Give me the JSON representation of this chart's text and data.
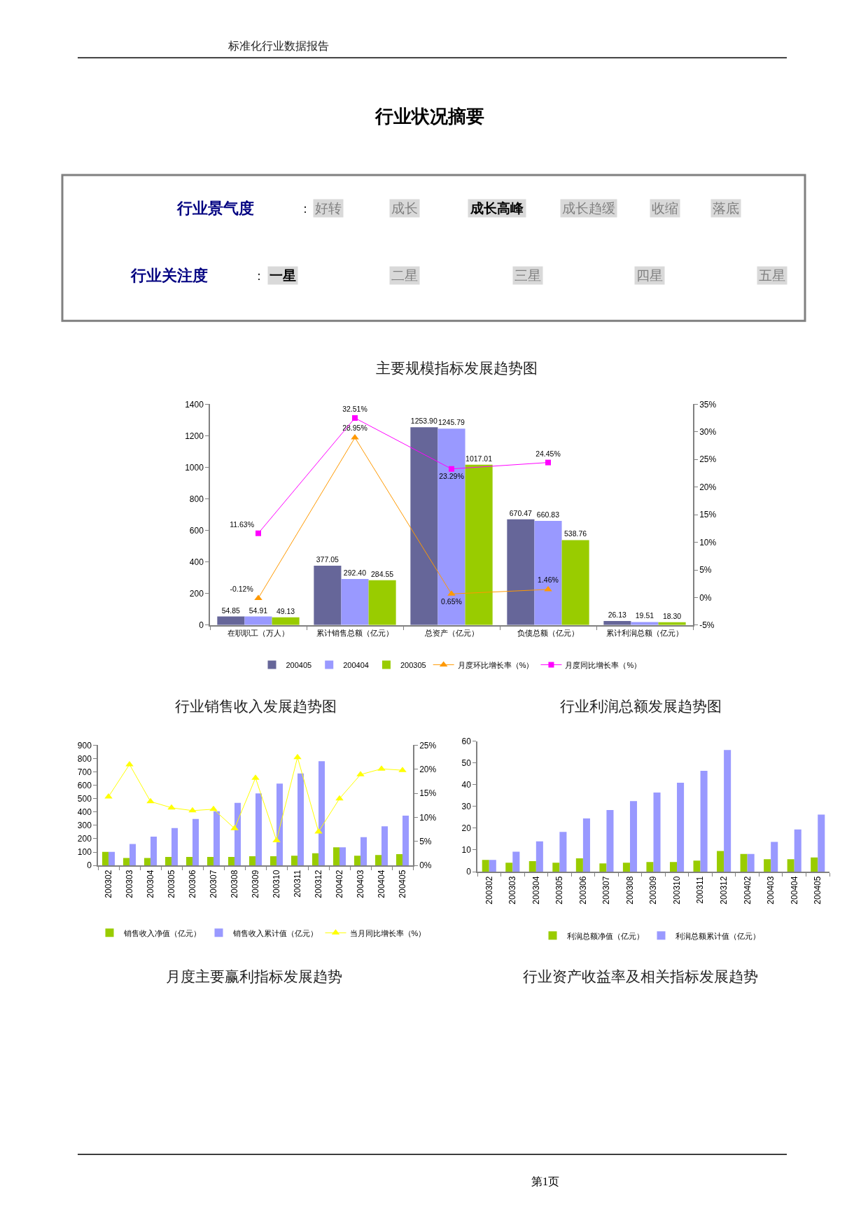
{
  "chart_data": [
    {
      "type": "other",
      "title": "行业状况摘要",
      "annotations": [
        "标准化行业数据报告",
        "行业景气度",
        "：",
        "好转",
        "成长",
        "成长高峰",
        "成长趋缓",
        "收缩",
        "落底",
        "行业关注度",
        "：",
        "一星",
        "二星",
        "三星",
        "四星",
        "五星"
      ]
    },
    {
      "type": "bar",
      "title": "主要规模指标发展趋势图",
      "categories": [
        "在职职工（万人）",
        "累计销售总额（亿元）",
        "总资产（亿元）",
        "负债总额（亿元）",
        "累计利润总额（亿元）"
      ],
      "series": [
        {
          "name": "200405",
          "color": "#666699",
          "values": [
            54.85,
            377.05,
            1253.9,
            670.47,
            26.13
          ],
          "value_labels": [
            "54.85",
            "377.05",
            "1253.90",
            "670.47",
            "26.13"
          ]
        },
        {
          "name": "200404",
          "color": "#9999ff",
          "values": [
            54.91,
            292.4,
            1245.79,
            660.83,
            19.51
          ],
          "value_labels": [
            "54.91",
            "292.40",
            "1245.79",
            "660.83",
            "19.51"
          ]
        },
        {
          "name": "200305",
          "color": "#99cc00",
          "values": [
            49.13,
            284.55,
            1017.01,
            538.76,
            18.3
          ],
          "value_labels": [
            "49.13",
            "284.55",
            "1017.01",
            "538.76",
            "18.30"
          ]
        },
        {
          "name": "月度环比增长率（%）",
          "type": "line",
          "axis": "y2",
          "marker": "triangle",
          "color": "#ff9900",
          "values": [
            -0.12,
            28.95,
            0.65,
            1.46,
            null
          ],
          "value_labels": [
            "-0.12%",
            "28.95%",
            "0.65%",
            "1.46%",
            null
          ]
        },
        {
          "name": "月度同比增长率（%）",
          "type": "line",
          "axis": "y2",
          "marker": "square",
          "color": "#ff00ff",
          "values": [
            11.63,
            32.51,
            23.29,
            24.45,
            null
          ],
          "value_labels": [
            "11.63%",
            "32.51%",
            "23.29%",
            "24.45%",
            null
          ]
        }
      ],
      "ylim": [
        0,
        1400
      ],
      "yticks": [
        0,
        200,
        400,
        600,
        800,
        1000,
        1200,
        1400
      ],
      "y2lim": [
        -5,
        35
      ],
      "y2ticks": [
        {
          "value": -5,
          "label": "-5%"
        },
        {
          "value": 0,
          "label": "0%"
        },
        {
          "value": 5,
          "label": "5%"
        },
        {
          "value": 10,
          "label": "10%"
        },
        {
          "value": 15,
          "label": "15%"
        },
        {
          "value": 20,
          "label": "20%"
        },
        {
          "value": 25,
          "label": "25%"
        },
        {
          "value": 30,
          "label": "30%"
        },
        {
          "value": 35,
          "label": "35%"
        }
      ],
      "legend": "bottom"
    },
    {
      "type": "bar",
      "title": "行业销售收入发展趋势图",
      "categories": [
        "200302",
        "200303",
        "200304",
        "200305",
        "200306",
        "200307",
        "200308",
        "200309",
        "200310",
        "200311",
        "200312",
        "200402",
        "200403",
        "200404",
        "200405"
      ],
      "series": [
        {
          "name": "销售收入净值（亿元）",
          "color": "#99cc00",
          "values": [
            102,
            56,
            56,
            63,
            63,
            63,
            63,
            69,
            69,
            73,
            91,
            136,
            73,
            78,
            84
          ]
        },
        {
          "name": "销售收入累计值（亿元）",
          "color": "#9999ff",
          "values": [
            102,
            160,
            216,
            280,
            348,
            406,
            468,
            540,
            613,
            689,
            781,
            136,
            212,
            293,
            373
          ]
        },
        {
          "name": "当月同比增长率（%）",
          "type": "line",
          "axis": "y2",
          "marker": "triangle",
          "color": "#ffff00",
          "values": [
            14.3,
            21.0,
            13.3,
            12.0,
            11.4,
            11.7,
            7.7,
            18.2,
            5.2,
            22.5,
            7.0,
            13.9,
            18.9,
            20.1,
            19.8
          ]
        }
      ],
      "ylim": [
        0,
        900
      ],
      "yticks": [
        0,
        100,
        200,
        300,
        400,
        500,
        600,
        700,
        800,
        900
      ],
      "y2lim": [
        0,
        25
      ],
      "y2ticks": [
        {
          "value": 0,
          "label": "0%"
        },
        {
          "value": 5,
          "label": "5%"
        },
        {
          "value": 10,
          "label": "10%"
        },
        {
          "value": 15,
          "label": "15%"
        },
        {
          "value": 20,
          "label": "20%"
        },
        {
          "value": 25,
          "label": "25%"
        }
      ],
      "legend": "bottom"
    },
    {
      "type": "bar",
      "title": "行业利润总额发展趋势图",
      "categories": [
        "200302",
        "200303",
        "200304",
        "200305",
        "200306",
        "200307",
        "200308",
        "200309",
        "200310",
        "200311",
        "200312",
        "200402",
        "200403",
        "200404",
        "200405"
      ],
      "series": [
        {
          "name": "利润总额净值（亿元）",
          "color": "#99cc00",
          "values": [
            5.4,
            4.1,
            4.8,
            4.1,
            6.1,
            3.8,
            4.1,
            4.4,
            4.4,
            5.1,
            9.5,
            8.1,
            5.7,
            5.7,
            6.5
          ]
        },
        {
          "name": "利润总额累计值（亿元）",
          "color": "#9999ff",
          "values": [
            5.4,
            9.2,
            13.9,
            18.3,
            24.5,
            28.3,
            32.4,
            36.4,
            40.9,
            46.3,
            55.9,
            8.1,
            13.7,
            19.4,
            26.2
          ]
        }
      ],
      "ylim": [
        0,
        60
      ],
      "yticks": [
        0,
        10,
        20,
        30,
        40,
        50,
        60
      ],
      "legend": "bottom"
    },
    {
      "type": "other",
      "annotations": [
        "月度主要赢利指标发展趋势",
        "行业资产收益率及相关指标发展趋势",
        "第1页"
      ]
    }
  ]
}
